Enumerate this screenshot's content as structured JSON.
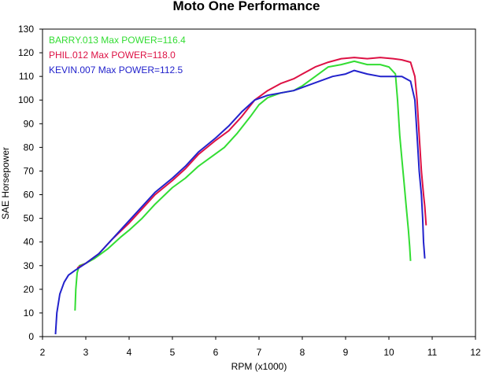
{
  "chart_data": {
    "type": "line",
    "title": "Moto One Performance",
    "xlabel": "RPM (x1000)",
    "ylabel": "SAE Horsepower",
    "xlim": [
      2,
      12
    ],
    "ylim": [
      0,
      130
    ],
    "xticks": [
      "2",
      "3",
      "4",
      "5",
      "6",
      "7",
      "8",
      "9",
      "10",
      "11",
      "12"
    ],
    "yticks": [
      "0",
      "10",
      "20",
      "30",
      "40",
      "50",
      "60",
      "70",
      "80",
      "90",
      "100",
      "110",
      "120",
      "130"
    ],
    "grid": false,
    "legend_position": "top-left inside",
    "series": [
      {
        "name": "BARRY.013  Max POWER=116.4",
        "color": "#33dd33",
        "points": [
          [
            2.75,
            11
          ],
          [
            2.77,
            20
          ],
          [
            2.8,
            27
          ],
          [
            2.85,
            30
          ],
          [
            3.0,
            31
          ],
          [
            3.2,
            33
          ],
          [
            3.5,
            37
          ],
          [
            3.8,
            42
          ],
          [
            4.0,
            45
          ],
          [
            4.3,
            50
          ],
          [
            4.6,
            56
          ],
          [
            5.0,
            63
          ],
          [
            5.3,
            67
          ],
          [
            5.6,
            72
          ],
          [
            5.9,
            76
          ],
          [
            6.2,
            80
          ],
          [
            6.5,
            86
          ],
          [
            6.8,
            93
          ],
          [
            7.0,
            98
          ],
          [
            7.2,
            101
          ],
          [
            7.5,
            103
          ],
          [
            7.8,
            104
          ],
          [
            8.0,
            106
          ],
          [
            8.3,
            110
          ],
          [
            8.6,
            114
          ],
          [
            8.9,
            115
          ],
          [
            9.2,
            116.4
          ],
          [
            9.5,
            115
          ],
          [
            9.8,
            115
          ],
          [
            10.0,
            114
          ],
          [
            10.15,
            111
          ],
          [
            10.2,
            100
          ],
          [
            10.25,
            85
          ],
          [
            10.3,
            75
          ],
          [
            10.35,
            65
          ],
          [
            10.4,
            55
          ],
          [
            10.45,
            45
          ],
          [
            10.48,
            38
          ],
          [
            10.5,
            32
          ]
        ]
      },
      {
        "name": "PHIL.012  Max POWER=118.0",
        "color": "#dd1144",
        "points": [
          [
            2.8,
            29
          ],
          [
            3.0,
            31
          ],
          [
            3.3,
            35
          ],
          [
            3.6,
            41
          ],
          [
            4.0,
            48
          ],
          [
            4.3,
            54
          ],
          [
            4.6,
            60
          ],
          [
            5.0,
            66
          ],
          [
            5.3,
            71
          ],
          [
            5.6,
            77
          ],
          [
            6.0,
            83
          ],
          [
            6.3,
            87
          ],
          [
            6.6,
            93
          ],
          [
            6.9,
            100
          ],
          [
            7.2,
            104
          ],
          [
            7.5,
            107
          ],
          [
            7.8,
            109
          ],
          [
            8.0,
            111
          ],
          [
            8.3,
            114
          ],
          [
            8.6,
            116
          ],
          [
            8.9,
            117.5
          ],
          [
            9.2,
            118
          ],
          [
            9.5,
            117.5
          ],
          [
            9.8,
            118
          ],
          [
            10.1,
            117.5
          ],
          [
            10.3,
            117
          ],
          [
            10.5,
            116
          ],
          [
            10.6,
            110
          ],
          [
            10.65,
            100
          ],
          [
            10.7,
            85
          ],
          [
            10.75,
            70
          ],
          [
            10.8,
            60
          ],
          [
            10.83,
            55
          ],
          [
            10.86,
            47
          ]
        ]
      },
      {
        "name": "KEVIN.007  Max POWER=112.5",
        "color": "#2222cc",
        "points": [
          [
            2.3,
            1
          ],
          [
            2.33,
            10
          ],
          [
            2.4,
            18
          ],
          [
            2.5,
            23
          ],
          [
            2.6,
            26
          ],
          [
            2.75,
            28
          ],
          [
            3.0,
            31
          ],
          [
            3.3,
            35
          ],
          [
            3.6,
            41
          ],
          [
            4.0,
            49
          ],
          [
            4.3,
            55
          ],
          [
            4.6,
            61
          ],
          [
            5.0,
            67
          ],
          [
            5.3,
            72
          ],
          [
            5.6,
            78
          ],
          [
            6.0,
            84
          ],
          [
            6.3,
            89
          ],
          [
            6.6,
            95
          ],
          [
            6.9,
            100
          ],
          [
            7.2,
            102
          ],
          [
            7.5,
            103
          ],
          [
            7.8,
            104
          ],
          [
            8.1,
            106
          ],
          [
            8.4,
            108
          ],
          [
            8.7,
            110
          ],
          [
            9.0,
            111
          ],
          [
            9.2,
            112.5
          ],
          [
            9.5,
            111
          ],
          [
            9.8,
            110
          ],
          [
            10.1,
            110
          ],
          [
            10.3,
            110
          ],
          [
            10.5,
            108
          ],
          [
            10.6,
            100
          ],
          [
            10.65,
            85
          ],
          [
            10.7,
            70
          ],
          [
            10.75,
            60
          ],
          [
            10.78,
            50
          ],
          [
            10.8,
            40
          ],
          [
            10.83,
            33
          ]
        ]
      }
    ]
  }
}
